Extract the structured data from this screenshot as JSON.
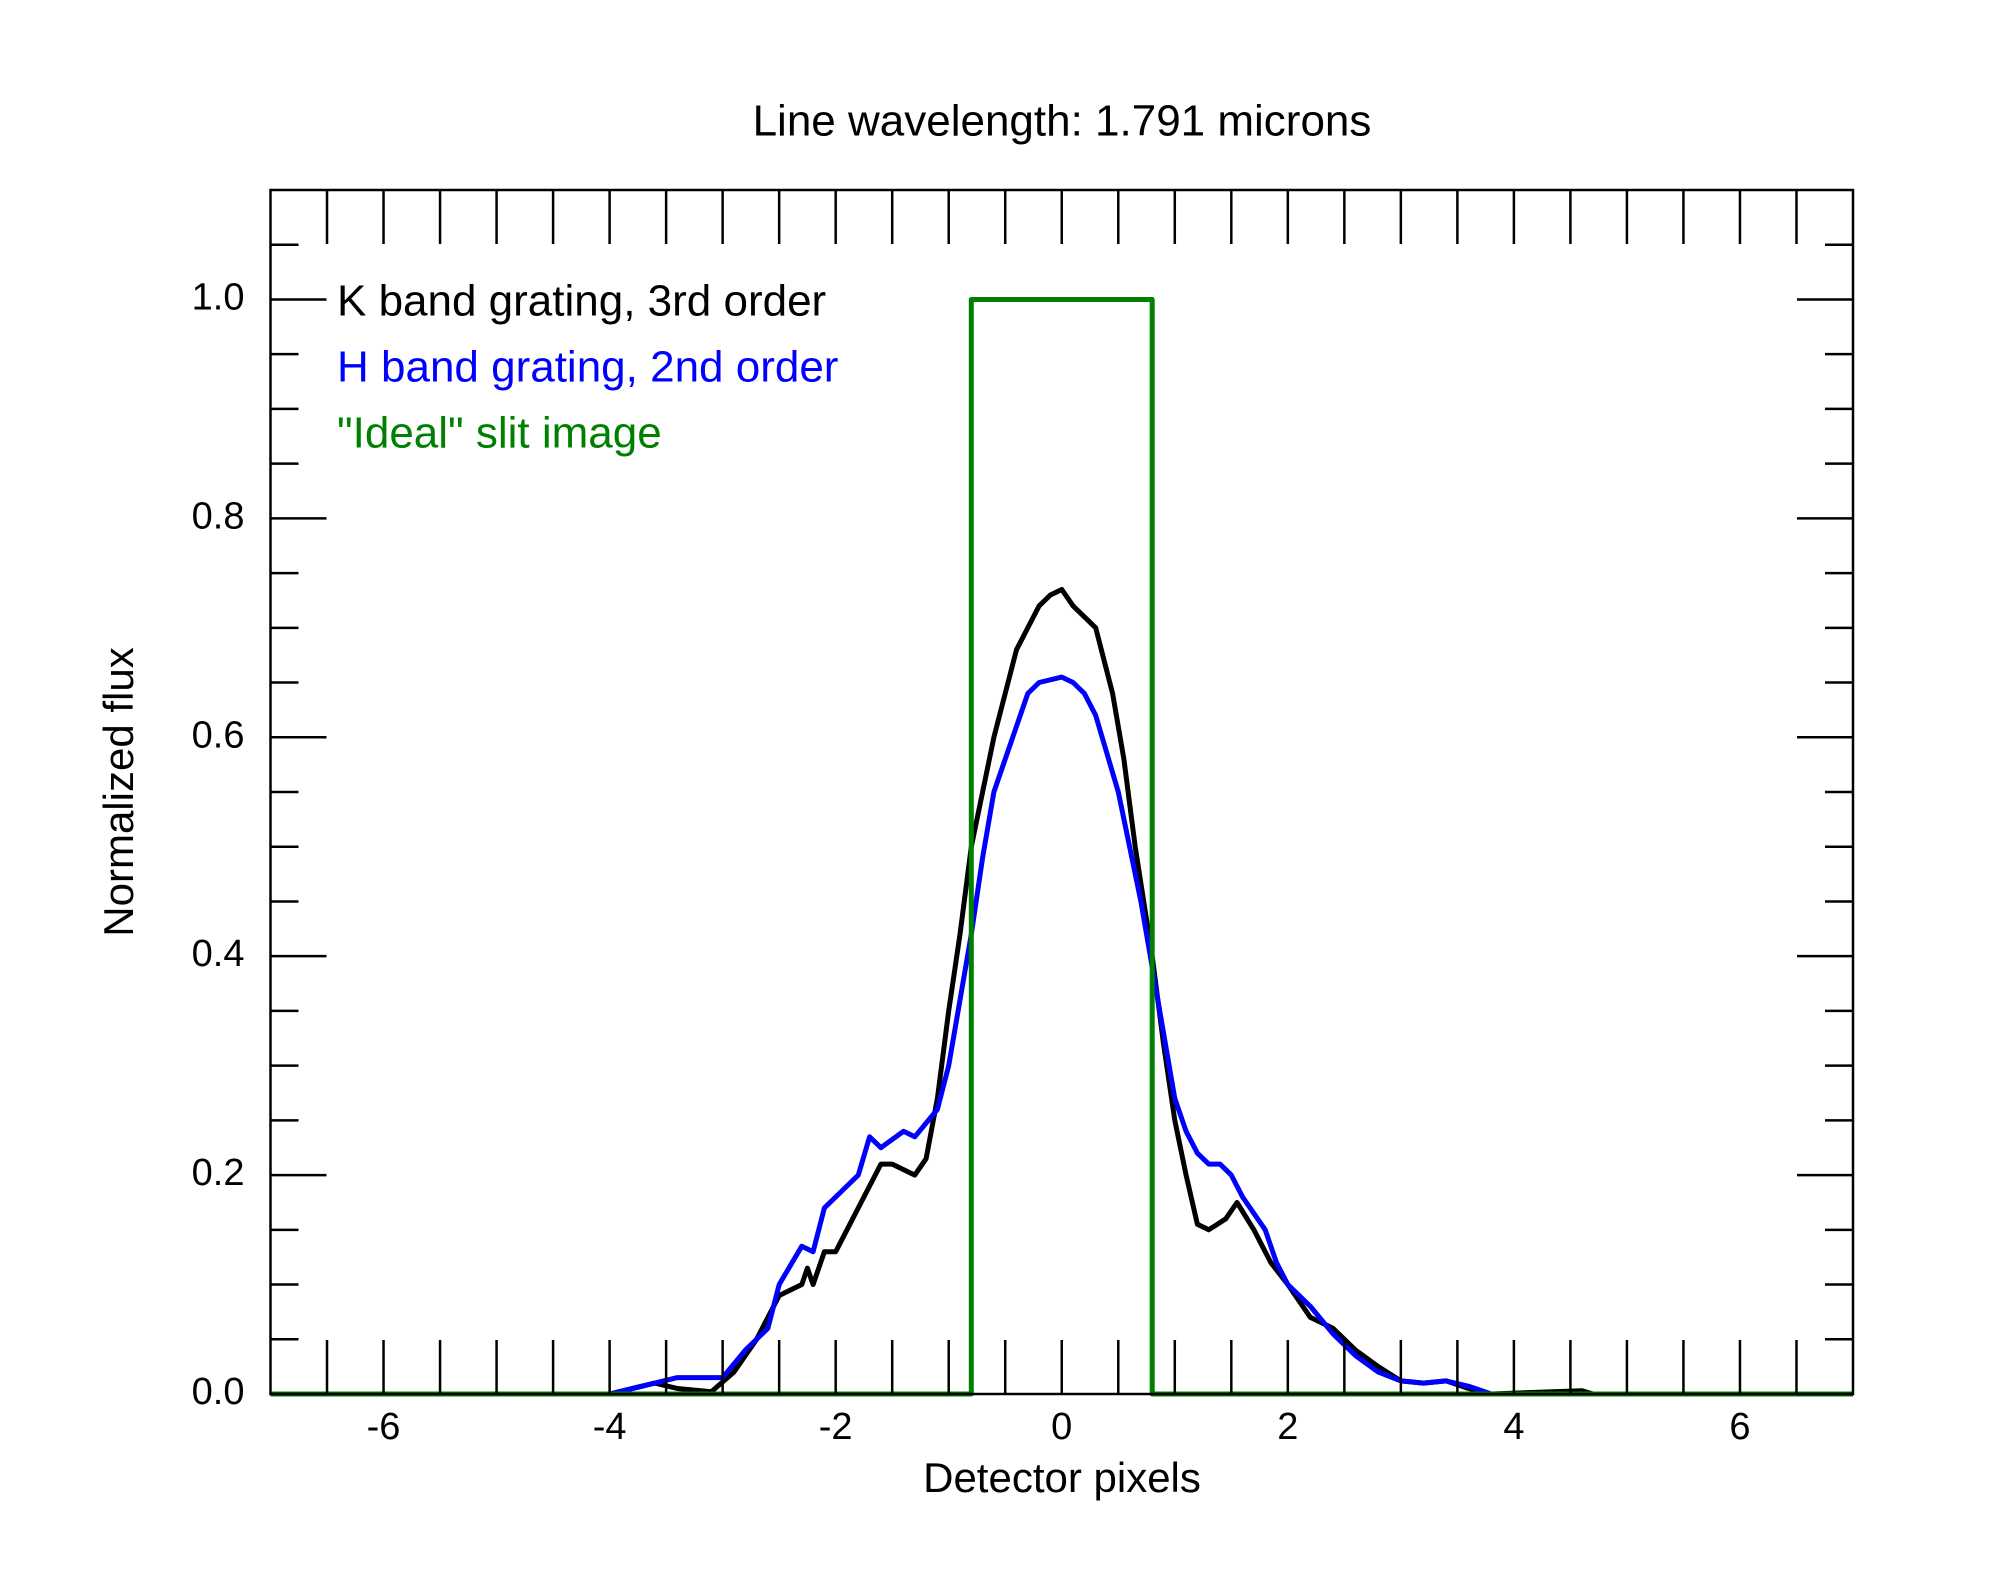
{
  "chart_data": {
    "type": "line",
    "title": "Line wavelength: 1.791 microns",
    "xlabel": "Detector pixels",
    "ylabel": "Normalized flux",
    "xlim": [
      -7,
      7
    ],
    "ylim": [
      0,
      1.1
    ],
    "xticks": [
      -6,
      -4,
      -2,
      0,
      2,
      4,
      6
    ],
    "yticks": [
      {
        "value": 0,
        "label": "0.0"
      },
      {
        "value": 0.2,
        "label": "0.2"
      },
      {
        "value": 0.4,
        "label": "0.4"
      },
      {
        "value": 0.6,
        "label": "0.6"
      },
      {
        "value": 0.8,
        "label": "0.8"
      },
      {
        "value": 1.0,
        "label": "1.0"
      }
    ],
    "xminorticks": [
      -6.5,
      -5.5,
      -5,
      -4.5,
      -3.5,
      -3,
      -2.5,
      -1.5,
      -1,
      -0.5,
      0.5,
      1,
      1.5,
      2.5,
      3,
      3.5,
      4.5,
      5,
      5.5,
      6.5
    ],
    "yminorticks": [
      0.05,
      0.1,
      0.15,
      0.25,
      0.3,
      0.35,
      0.45,
      0.5,
      0.55,
      0.65,
      0.7,
      0.75,
      0.85,
      0.9,
      0.95,
      1.05
    ],
    "series": [
      {
        "name": "K band grating, 3rd order",
        "color": "#000000",
        "x": [
          -7,
          -4,
          -3.6,
          -3.4,
          -3.1,
          -2.9,
          -2.7,
          -2.5,
          -2.4,
          -2.3,
          -2.25,
          -2.2,
          -2.1,
          -2.0,
          -1.9,
          -1.8,
          -1.7,
          -1.6,
          -1.5,
          -1.4,
          -1.3,
          -1.2,
          -1.1,
          -1.0,
          -0.9,
          -0.8,
          -0.6,
          -0.4,
          -0.2,
          -0.1,
          0,
          0.1,
          0.3,
          0.45,
          0.55,
          0.65,
          0.8,
          0.9,
          1.0,
          1.1,
          1.2,
          1.3,
          1.45,
          1.55,
          1.7,
          1.85,
          2.0,
          2.2,
          2.4,
          2.6,
          2.8,
          3.0,
          3.2,
          3.4,
          3.6,
          3.8,
          4.6,
          4.7,
          7
        ],
        "values": [
          0,
          0,
          0.01,
          0.005,
          0.002,
          0.02,
          0.05,
          0.09,
          0.095,
          0.1,
          0.115,
          0.1,
          0.13,
          0.13,
          0.15,
          0.17,
          0.19,
          0.21,
          0.21,
          0.205,
          0.2,
          0.215,
          0.27,
          0.35,
          0.42,
          0.5,
          0.6,
          0.68,
          0.72,
          0.73,
          0.735,
          0.72,
          0.7,
          0.64,
          0.58,
          0.5,
          0.4,
          0.32,
          0.25,
          0.2,
          0.155,
          0.15,
          0.16,
          0.175,
          0.15,
          0.12,
          0.1,
          0.07,
          0.06,
          0.04,
          0.025,
          0.012,
          0.01,
          0.012,
          0.005,
          0,
          0.003,
          0,
          0
        ]
      },
      {
        "name": "H band grating, 2nd order",
        "color": "#0000ff",
        "x": [
          -7,
          -4,
          -3.6,
          -3.4,
          -3.0,
          -2.8,
          -2.6,
          -2.5,
          -2.3,
          -2.2,
          -2.1,
          -1.9,
          -1.8,
          -1.7,
          -1.6,
          -1.4,
          -1.3,
          -1.1,
          -1.0,
          -0.9,
          -0.8,
          -0.7,
          -0.6,
          -0.4,
          -0.3,
          -0.2,
          0,
          0.1,
          0.2,
          0.3,
          0.5,
          0.6,
          0.7,
          0.8,
          0.9,
          1.0,
          1.1,
          1.2,
          1.3,
          1.4,
          1.5,
          1.6,
          1.8,
          1.9,
          2.0,
          2.2,
          2.4,
          2.6,
          2.8,
          3.0,
          3.2,
          3.4,
          3.6,
          3.8,
          7
        ],
        "values": [
          0,
          0,
          0.01,
          0.015,
          0.015,
          0.04,
          0.06,
          0.1,
          0.135,
          0.13,
          0.17,
          0.19,
          0.2,
          0.235,
          0.225,
          0.24,
          0.235,
          0.26,
          0.3,
          0.36,
          0.42,
          0.49,
          0.55,
          0.61,
          0.64,
          0.65,
          0.655,
          0.65,
          0.64,
          0.62,
          0.55,
          0.5,
          0.45,
          0.39,
          0.33,
          0.27,
          0.24,
          0.22,
          0.21,
          0.21,
          0.2,
          0.18,
          0.15,
          0.12,
          0.1,
          0.08,
          0.055,
          0.035,
          0.02,
          0.012,
          0.01,
          0.012,
          0.007,
          0,
          0
        ]
      },
      {
        "name": "\"Ideal\" slit image",
        "color": "#008000",
        "x": [
          -7,
          -0.8,
          -0.8,
          0.8,
          0.8,
          7
        ],
        "values": [
          0,
          0,
          1,
          1,
          0,
          0
        ]
      }
    ]
  }
}
